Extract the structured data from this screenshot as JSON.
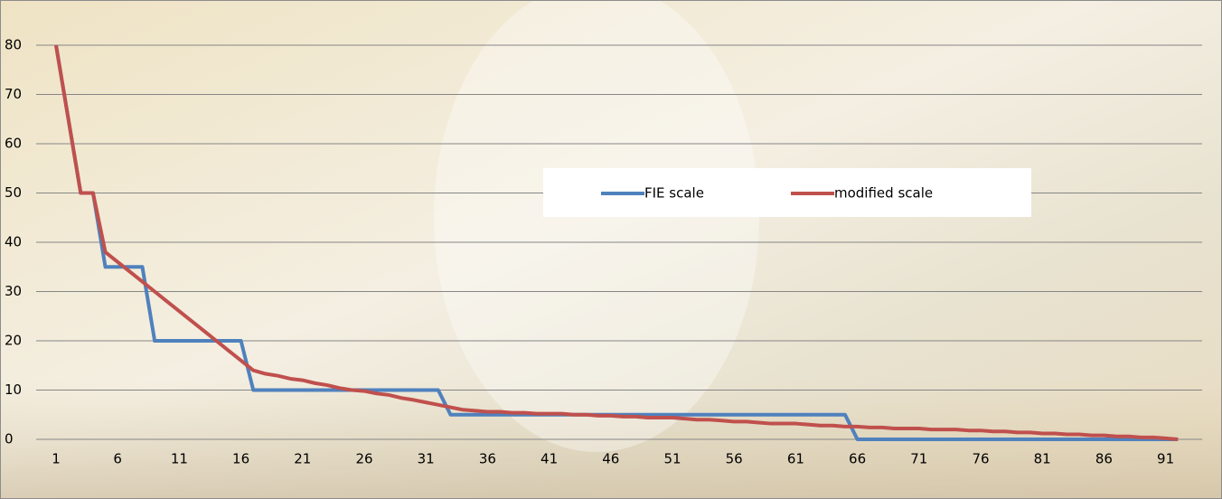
{
  "chart_data": {
    "type": "line",
    "categories": [
      "1",
      null,
      null,
      null,
      null,
      "6",
      null,
      null,
      null,
      null,
      "11",
      null,
      null,
      null,
      null,
      "16",
      null,
      null,
      null,
      null,
      "21",
      null,
      null,
      null,
      null,
      "26",
      null,
      null,
      null,
      null,
      "31",
      null,
      null,
      null,
      null,
      "36",
      null,
      null,
      null,
      null,
      "41",
      null,
      null,
      null,
      null,
      "46",
      null,
      null,
      null,
      null,
      "51",
      null,
      null,
      null,
      null,
      "56",
      null,
      null,
      null,
      null,
      "61",
      null,
      null,
      null,
      null,
      "66",
      null,
      null,
      null,
      null,
      "71",
      null,
      null,
      null,
      null,
      "76",
      null,
      null,
      null,
      null,
      "81",
      null,
      null,
      null,
      null,
      "86",
      null,
      null,
      null,
      null,
      "91",
      null
    ],
    "series": [
      {
        "name": "FIE scale",
        "color": "#4f81bd",
        "values": [
          80,
          65,
          50,
          50,
          35,
          35,
          35,
          35,
          20,
          20,
          20,
          20,
          20,
          20,
          20,
          20,
          10,
          10,
          10,
          10,
          10,
          10,
          10,
          10,
          10,
          10,
          10,
          10,
          10,
          10,
          10,
          10,
          5,
          5,
          5,
          5,
          5,
          5,
          5,
          5,
          5,
          5,
          5,
          5,
          5,
          5,
          5,
          5,
          5,
          5,
          5,
          5,
          5,
          5,
          5,
          5,
          5,
          5,
          5,
          5,
          5,
          5,
          5,
          5,
          5,
          0,
          0,
          0,
          0,
          0,
          0,
          0,
          0,
          0,
          0,
          0,
          0,
          0,
          0,
          0,
          0,
          0,
          0,
          0,
          0,
          0,
          0,
          0,
          0,
          0,
          0,
          0
        ]
      },
      {
        "name": "modified scale",
        "color": "#c0504d",
        "values": [
          80,
          65,
          50,
          50,
          38,
          36,
          34,
          32,
          30,
          28,
          26,
          24,
          22,
          20,
          18,
          16,
          14,
          13.3,
          12.9,
          12.3,
          12,
          11.4,
          11,
          10.4,
          10,
          9.8,
          9.3,
          9,
          8.4,
          8,
          7.5,
          7,
          6.5,
          6,
          5.8,
          5.6,
          5.6,
          5.4,
          5.4,
          5.2,
          5.2,
          5.2,
          5,
          5,
          4.8,
          4.8,
          4.6,
          4.6,
          4.4,
          4.4,
          4.4,
          4.2,
          4,
          4,
          3.8,
          3.6,
          3.6,
          3.4,
          3.2,
          3.2,
          3.2,
          3,
          2.8,
          2.8,
          2.6,
          2.6,
          2.4,
          2.4,
          2.2,
          2.2,
          2.2,
          2,
          2,
          2,
          1.8,
          1.8,
          1.6,
          1.6,
          1.4,
          1.4,
          1.2,
          1.2,
          1,
          1,
          0.8,
          0.8,
          0.6,
          0.6,
          0.4,
          0.4,
          0.2,
          0
        ]
      }
    ],
    "ylim": [
      0,
      80
    ],
    "yticks": [
      0,
      10,
      20,
      30,
      40,
      50,
      60,
      70,
      80
    ],
    "grid": true
  }
}
